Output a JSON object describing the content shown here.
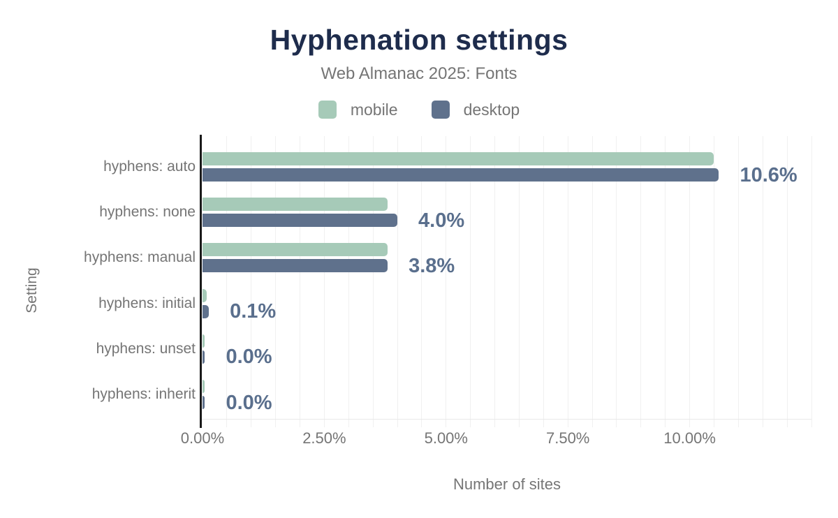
{
  "header": {
    "title": "Hyphenation settings",
    "subtitle": "Web Almanac 2025: Fonts"
  },
  "legend": {
    "items": [
      {
        "label": "mobile",
        "color": "#a6cab8"
      },
      {
        "label": "desktop",
        "color": "#5f718c"
      }
    ]
  },
  "chart_data": {
    "type": "bar",
    "orientation": "horizontal",
    "title": "Hyphenation settings",
    "subtitle": "Web Almanac 2025: Fonts",
    "categories": [
      "hyphens: auto",
      "hyphens: none",
      "hyphens: manual",
      "hyphens: initial",
      "hyphens: unset",
      "hyphens: inherit"
    ],
    "series": [
      {
        "name": "mobile",
        "color": "#a6cab8",
        "values": [
          10.5,
          3.8,
          3.8,
          0.08,
          0.04,
          0.04
        ]
      },
      {
        "name": "desktop",
        "color": "#5f718c",
        "values": [
          10.6,
          4.0,
          3.8,
          0.13,
          0.05,
          0.05
        ]
      }
    ],
    "value_labels": [
      "10.6%",
      "4.0%",
      "3.8%",
      "0.1%",
      "0.0%",
      "0.0%"
    ],
    "xlabel": "Number of sites",
    "ylabel": "Setting",
    "xticks": {
      "values": [
        0,
        2.5,
        5,
        7.5,
        10
      ],
      "labels": [
        "0.00%",
        "2.50%",
        "5.00%",
        "7.50%",
        "10.00%"
      ]
    },
    "xlim": [
      0,
      12.5
    ],
    "grid_step": 0.5,
    "legend_position": "top",
    "grid": true,
    "colors": {
      "title": "#1e2c4c",
      "text": "#757575",
      "value_label": "#5a6f8d",
      "axis_line": "#1a1a1a",
      "gridline": "#f0f0f0"
    }
  }
}
